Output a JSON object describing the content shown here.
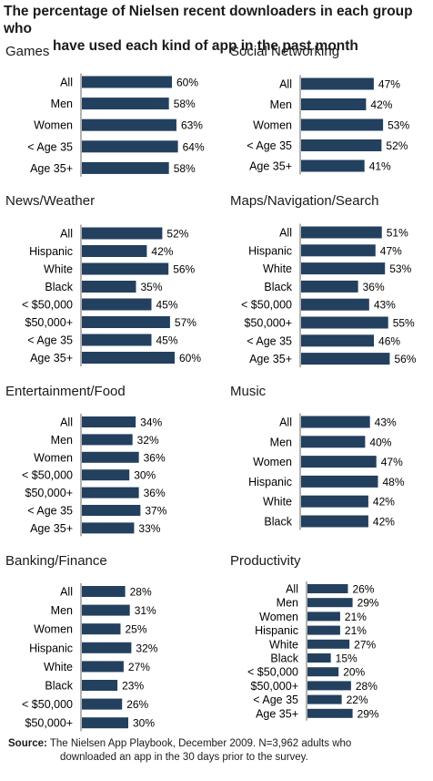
{
  "title_line1": "The percentage of Nielsen recent downloaders in each group who",
  "title_line2": "have used each kind of app in the past month",
  "source_label": "Source:",
  "source_line1": "The Nielsen App Playbook, December 2009. N=3,962 adults who",
  "source_line2": "downloaded an app in the 30 days prior to the survey.",
  "colors": {
    "bar": "#23405f"
  },
  "chart_data": [
    {
      "type": "bar",
      "orientation": "horizontal",
      "title": "Games",
      "categories": [
        "All",
        "Men",
        "Women",
        "< Age 35",
        "Age 35+"
      ],
      "values": [
        60,
        58,
        63,
        64,
        58
      ],
      "value_labels": [
        "60%",
        "58%",
        "63%",
        "64%",
        "58%"
      ]
    },
    {
      "type": "bar",
      "orientation": "horizontal",
      "title": "Social Networking",
      "categories": [
        "All",
        "Men",
        "Women",
        "< Age 35",
        "Age 35+"
      ],
      "values": [
        47,
        42,
        53,
        52,
        41
      ],
      "value_labels": [
        "47%",
        "42%",
        "53%",
        "52%",
        "41%"
      ]
    },
    {
      "type": "bar",
      "orientation": "horizontal",
      "title": "News/Weather",
      "categories": [
        "All",
        "Hispanic",
        "White",
        "Black",
        "< $50,000",
        "$50,000+",
        "< Age 35",
        "Age 35+"
      ],
      "values": [
        52,
        42,
        56,
        35,
        45,
        57,
        45,
        60
      ],
      "value_labels": [
        "52%",
        "42%",
        "56%",
        "35%",
        "45%",
        "57%",
        "45%",
        "60%"
      ]
    },
    {
      "type": "bar",
      "orientation": "horizontal",
      "title": "Maps/Navigation/Search",
      "categories": [
        "All",
        "Hispanic",
        "White",
        "Black",
        "< $50,000",
        "$50,000+",
        "< Age 35",
        "Age 35+"
      ],
      "values": [
        51,
        47,
        53,
        36,
        43,
        55,
        46,
        56
      ],
      "value_labels": [
        "51%",
        "47%",
        "53%",
        "36%",
        "43%",
        "55%",
        "46%",
        "56%"
      ]
    },
    {
      "type": "bar",
      "orientation": "horizontal",
      "title": "Entertainment/Food",
      "categories": [
        "All",
        "Men",
        "Women",
        "< $50,000",
        "$50,000+",
        "< Age 35",
        "Age 35+"
      ],
      "values": [
        34,
        32,
        36,
        30,
        36,
        37,
        33
      ],
      "value_labels": [
        "34%",
        "32%",
        "36%",
        "30%",
        "36%",
        "37%",
        "33%"
      ]
    },
    {
      "type": "bar",
      "orientation": "horizontal",
      "title": "Music",
      "categories": [
        "All",
        "Men",
        "Women",
        "Hispanic",
        "White",
        "Black"
      ],
      "values": [
        43,
        40,
        47,
        48,
        42,
        42
      ],
      "value_labels": [
        "43%",
        "40%",
        "47%",
        "48%",
        "42%",
        "42%"
      ]
    },
    {
      "type": "bar",
      "orientation": "horizontal",
      "title": "Banking/Finance",
      "categories": [
        "All",
        "Men",
        "Women",
        "Hispanic",
        "White",
        "Black",
        "< $50,000",
        "$50,000+"
      ],
      "values": [
        28,
        31,
        25,
        32,
        27,
        23,
        26,
        30
      ],
      "value_labels": [
        "28%",
        "31%",
        "25%",
        "32%",
        "27%",
        "23%",
        "26%",
        "30%"
      ]
    },
    {
      "type": "bar",
      "orientation": "horizontal",
      "title": "Productivity",
      "categories": [
        "All",
        "Men",
        "Women",
        "Hispanic",
        "White",
        "Black",
        "< $50,000",
        "$50,000+",
        "< Age 35",
        "Age 35+"
      ],
      "values": [
        26,
        29,
        21,
        21,
        27,
        15,
        20,
        28,
        22,
        29
      ],
      "value_labels": [
        "26%",
        "29%",
        "21%",
        "21%",
        "27%",
        "15%",
        "20%",
        "28%",
        "22%",
        "29%"
      ]
    }
  ]
}
